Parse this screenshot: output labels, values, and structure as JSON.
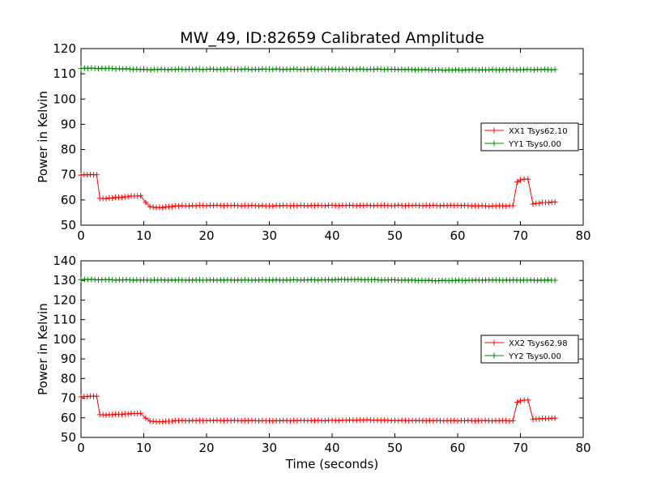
{
  "figure": {
    "title": "MW_49, ID:82659 Calibrated Amplitude"
  },
  "chart_data": [
    {
      "type": "line",
      "title": "MW_49, ID:82659 Calibrated Amplitude",
      "xlabel": "",
      "ylabel": "Power in Kelvin",
      "xlim": [
        0,
        80
      ],
      "ylim": [
        50,
        120
      ],
      "xticks": [
        0,
        10,
        20,
        30,
        40,
        50,
        60,
        70,
        80
      ],
      "yticks": [
        50,
        60,
        70,
        80,
        90,
        100,
        110,
        120
      ],
      "grid": false,
      "legend_position": "center-right",
      "series": [
        {
          "name": "XX1 Tsys62.10",
          "color": "#ff0000",
          "marker": "plus",
          "points": [
            [
              0,
              70
            ],
            [
              2.5,
              70
            ],
            [
              3,
              60.5
            ],
            [
              5,
              60.8
            ],
            [
              7,
              61.2
            ],
            [
              9.5,
              61.8
            ],
            [
              10.3,
              59
            ],
            [
              11,
              57.2
            ],
            [
              13,
              57
            ],
            [
              15,
              57.6
            ],
            [
              20,
              57.8
            ],
            [
              30,
              57.7
            ],
            [
              40,
              57.8
            ],
            [
              50,
              57.8
            ],
            [
              60,
              57.8
            ],
            [
              65,
              57.6
            ],
            [
              68.8,
              57.7
            ],
            [
              69.5,
              67
            ],
            [
              70,
              68
            ],
            [
              71.2,
              68.2
            ],
            [
              72,
              58.5
            ],
            [
              74,
              59
            ],
            [
              75.5,
              59.2
            ]
          ]
        },
        {
          "name": "YY1 Tsys0.00",
          "color": "#008000",
          "marker": "plus",
          "points": [
            [
              0,
              112.2
            ],
            [
              5,
              112.1
            ],
            [
              10,
              111.7
            ],
            [
              20,
              111.8
            ],
            [
              30,
              111.8
            ],
            [
              40,
              111.8
            ],
            [
              50,
              111.8
            ],
            [
              57,
              111.5
            ],
            [
              65,
              111.6
            ],
            [
              75.5,
              111.7
            ]
          ]
        }
      ]
    },
    {
      "type": "line",
      "title": "",
      "xlabel": "Time (seconds)",
      "ylabel": "Power in Kelvin",
      "xlim": [
        0,
        80
      ],
      "ylim": [
        50,
        140
      ],
      "xticks": [
        0,
        10,
        20,
        30,
        40,
        50,
        60,
        70,
        80
      ],
      "yticks": [
        50,
        60,
        70,
        80,
        90,
        100,
        110,
        120,
        130,
        140
      ],
      "grid": false,
      "legend_position": "center-right",
      "series": [
        {
          "name": "XX2 Tsys62.98",
          "color": "#ff0000",
          "marker": "plus",
          "points": [
            [
              0,
              70.8
            ],
            [
              2.5,
              71
            ],
            [
              3,
              61.5
            ],
            [
              5,
              61.6
            ],
            [
              7,
              61.9
            ],
            [
              9.5,
              62.4
            ],
            [
              10.3,
              59.8
            ],
            [
              11,
              58.2
            ],
            [
              13,
              58
            ],
            [
              15,
              58.5
            ],
            [
              20,
              58.6
            ],
            [
              30,
              58.5
            ],
            [
              40,
              58.6
            ],
            [
              45,
              58.9
            ],
            [
              50,
              58.6
            ],
            [
              60,
              58.5
            ],
            [
              68.8,
              58.5
            ],
            [
              69.5,
              67.8
            ],
            [
              70,
              68.7
            ],
            [
              71.2,
              69
            ],
            [
              72,
              59.3
            ],
            [
              74,
              59.6
            ],
            [
              75.5,
              59.8
            ]
          ]
        },
        {
          "name": "YY2 Tsys0.00",
          "color": "#008000",
          "marker": "plus",
          "points": [
            [
              0,
              130.5
            ],
            [
              5,
              130.3
            ],
            [
              10,
              130.2
            ],
            [
              20,
              130.2
            ],
            [
              30,
              130.2
            ],
            [
              40,
              130.3
            ],
            [
              42,
              130.5
            ],
            [
              50,
              130.2
            ],
            [
              57,
              129.9
            ],
            [
              65,
              130.2
            ],
            [
              75.5,
              130.1
            ]
          ]
        }
      ]
    }
  ]
}
